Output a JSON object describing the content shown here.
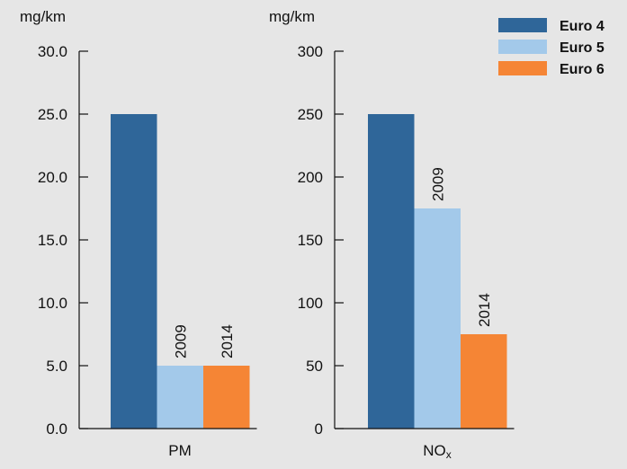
{
  "legend": [
    {
      "name": "Euro 4",
      "color": "#2f6699"
    },
    {
      "name": "Euro 5",
      "color": "#a3c9ea"
    },
    {
      "name": "Euro 6",
      "color": "#f58535"
    }
  ],
  "chart_data": [
    {
      "type": "bar",
      "unit_label": "mg/km",
      "category": "PM",
      "category_subscript": "",
      "ylim": [
        0,
        30
      ],
      "yticks": [
        "0.0",
        "5.0",
        "10.0",
        "15.0",
        "20.0",
        "25.0",
        "30.0"
      ],
      "ytick_values": [
        0,
        5,
        10,
        15,
        20,
        25,
        30
      ],
      "series": [
        {
          "name": "Euro 4",
          "value": 25,
          "label": "",
          "color": "#2f6699"
        },
        {
          "name": "Euro 5",
          "value": 5,
          "label": "2009",
          "color": "#a3c9ea"
        },
        {
          "name": "Euro 6",
          "value": 5,
          "label": "2014",
          "color": "#f58535"
        }
      ]
    },
    {
      "type": "bar",
      "unit_label": "mg/km",
      "category": "NO",
      "category_subscript": "x",
      "ylim": [
        0,
        300
      ],
      "yticks": [
        "0",
        "50",
        "100",
        "150",
        "200",
        "250",
        "300"
      ],
      "ytick_values": [
        0,
        50,
        100,
        150,
        200,
        250,
        300
      ],
      "series": [
        {
          "name": "Euro 4",
          "value": 250,
          "label": "",
          "color": "#2f6699"
        },
        {
          "name": "Euro 5",
          "value": 175,
          "label": "2009",
          "color": "#a3c9ea"
        },
        {
          "name": "Euro 6",
          "value": 75,
          "label": "2014",
          "color": "#f58535"
        }
      ]
    }
  ]
}
